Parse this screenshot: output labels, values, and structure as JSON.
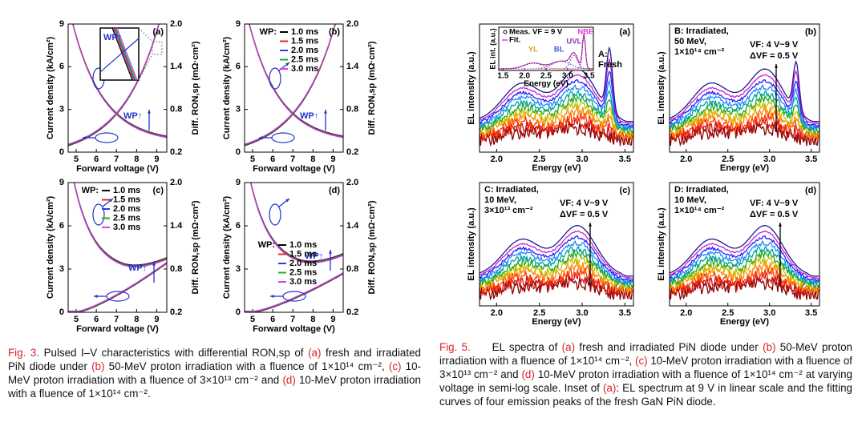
{
  "fig3": {
    "xlabel": "Forward voltage (V)",
    "ylabel": "Current density (kA/cm²)",
    "y2label": "Diff. RON,sp (mΩ·cm²)",
    "xlim": [
      4.6,
      9.5
    ],
    "ylim": [
      0,
      9
    ],
    "y2lim": [
      0.2,
      2
    ],
    "xticks": [
      5,
      6,
      7,
      8,
      9
    ],
    "yticks": [
      0,
      3,
      6,
      9
    ],
    "y2ticks": [
      0.2,
      0.8,
      1.4,
      {
        "value": 2,
        "label": "2.0"
      }
    ],
    "legend_title": "WP:",
    "series": [
      {
        "name": "1.0 ms",
        "color": "#000000"
      },
      {
        "name": "1.5 ms",
        "color": "#e8262b"
      },
      {
        "name": "2.0 ms",
        "color": "#2a3fe0"
      },
      {
        "name": "2.5 ms",
        "color": "#1fa92e"
      },
      {
        "name": "3.0 ms",
        "color": "#e040e0"
      }
    ],
    "panels": [
      {
        "tag": "(a)",
        "legend": false,
        "annotation": "WP↑",
        "inset_label": "WP↑"
      },
      {
        "tag": "(b)",
        "legend": true,
        "annotation": "WP↑"
      },
      {
        "tag": "(c)",
        "legend": true,
        "annotation": "WP↑"
      },
      {
        "tag": "(d)",
        "legend": true,
        "annotation": "WP↑"
      }
    ],
    "caption": [
      "Fig. 3.",
      " Pulsed I–V characteristics with differential RON,sp of ",
      "(a)",
      " fresh and irradiated PiN diode under ",
      "(b)",
      " 50-MeV proton irradiation with a fluence of 1×10¹⁴ cm⁻², ",
      "(c)",
      " 10-MeV proton irradiation with a fluence of 3×10¹³ cm⁻² and ",
      "(d)",
      " 10-MeV proton irradiation with a fluence of 1×10¹⁴ cm⁻²."
    ]
  },
  "fig5": {
    "xlabel": "Energy (eV)",
    "ylabel": "EL intensity (a.u.)",
    "xlim": [
      1.8,
      3.6
    ],
    "xticks": [
      {
        "value": 2,
        "label": "2.0"
      },
      2.5,
      {
        "value": 3,
        "label": "3.0"
      },
      3.5
    ],
    "panels": [
      {
        "tag": "(a)",
        "notes": [
          "A:",
          "Fresh"
        ]
      },
      {
        "tag": "(b)",
        "notes": [
          "B: Irradiated,",
          "50 MeV,",
          "1×10¹⁴ cm⁻²"
        ],
        "sweep": [
          "VF: 4 V~9 V",
          "ΔVF = 0.5 V"
        ]
      },
      {
        "tag": "(c)",
        "notes": [
          "C: Irradiated,",
          "10 MeV,",
          "3×10¹³ cm⁻²"
        ],
        "sweep": [
          "VF: 4 V~9 V",
          "ΔVF = 0.5 V"
        ]
      },
      {
        "tag": "(d)",
        "notes": [
          "D: Irradiated,",
          "10 MeV,",
          "1×10¹⁴ cm⁻²"
        ],
        "sweep": [
          "VF: 4 V~9 V",
          "ΔVF = 0.5 V"
        ]
      }
    ],
    "inset": {
      "ylabel": "EL int. (a.u.)",
      "xlabel": "Energy (eV)",
      "xlim": [
        1.4,
        3.6
      ],
      "xticks": [
        1.5,
        {
          "value": 2,
          "label": "2.0"
        },
        2.5,
        {
          "value": 3,
          "label": "3.0"
        },
        3.5
      ],
      "legend": [
        "Meas. VF = 9 V",
        "Fit."
      ],
      "peaks": [
        "YL",
        "BL",
        "UVL",
        "NBE"
      ]
    },
    "caption": [
      "Fig. 5.",
      "     EL spectra of ",
      "(a)",
      " fresh and irradiated PiN diode under ",
      "(b)",
      " 50-MeV proton irradiation with a fluence of 1×10¹⁴ cm⁻², ",
      "(c)",
      " 10-MeV proton irradiation with a fluence of 3×10¹³ cm⁻² and ",
      "(d)",
      " 10-MeV proton irradiation with a fluence of 1×10¹⁴ cm⁻² at varying voltage in semi-log scale. Inset of ",
      "(a)",
      ": EL spectrum at 9 V in linear scale and the fitting curves of four emission peaks of the fresh GaN PiN diode."
    ]
  }
}
